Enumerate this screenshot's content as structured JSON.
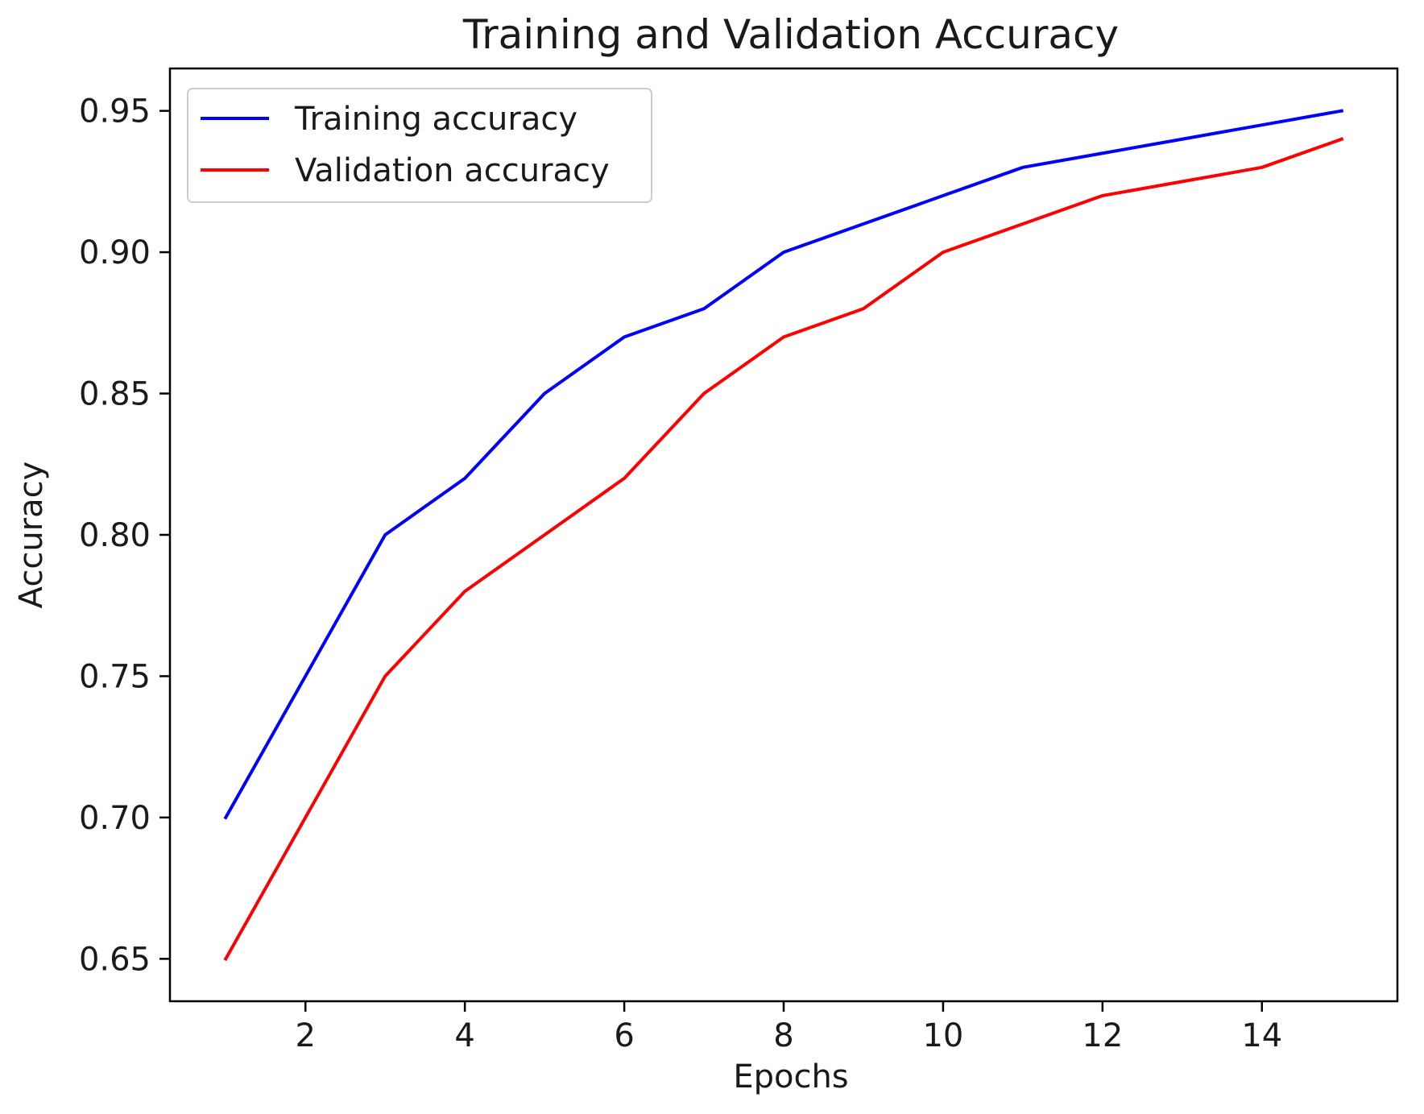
{
  "chart_data": {
    "type": "line",
    "title": "Training and Validation Accuracy",
    "xlabel": "Epochs",
    "ylabel": "Accuracy",
    "x": [
      1,
      2,
      3,
      4,
      5,
      6,
      7,
      8,
      9,
      10,
      11,
      12,
      13,
      14,
      15
    ],
    "series": [
      {
        "name": "Training accuracy",
        "color": "#0000ff",
        "values": [
          0.7,
          0.75,
          0.8,
          0.82,
          0.85,
          0.87,
          0.88,
          0.9,
          0.91,
          0.92,
          0.93,
          0.935,
          0.94,
          0.945,
          0.95
        ]
      },
      {
        "name": "Validation accuracy",
        "color": "#ff0000",
        "values": [
          0.65,
          0.7,
          0.75,
          0.78,
          0.8,
          0.82,
          0.85,
          0.87,
          0.88,
          0.9,
          0.91,
          0.92,
          0.925,
          0.93,
          0.94
        ]
      }
    ],
    "xlim": [
      0.3,
      15.7
    ],
    "ylim": [
      0.635,
      0.965
    ],
    "xticks": [
      2,
      4,
      6,
      8,
      10,
      12,
      14
    ],
    "xtick_labels": [
      "2",
      "4",
      "6",
      "8",
      "10",
      "12",
      "14"
    ],
    "yticks": [
      0.65,
      0.7,
      0.75,
      0.8,
      0.85,
      0.9,
      0.95
    ],
    "ytick_labels": [
      "0.65",
      "0.70",
      "0.75",
      "0.80",
      "0.85",
      "0.90",
      "0.95"
    ],
    "grid": false,
    "legend_position": "top-left"
  }
}
